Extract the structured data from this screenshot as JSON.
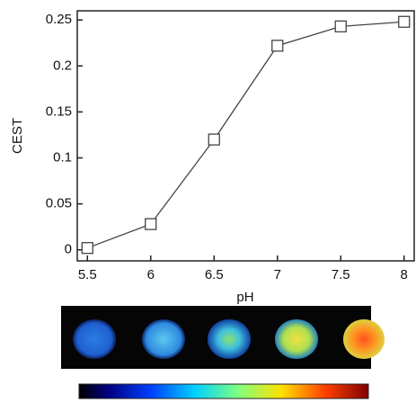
{
  "chart_data": {
    "type": "line",
    "x_label": "pH",
    "y_label": "CEST",
    "x": [
      5.5,
      6,
      6.5,
      7,
      7.5,
      8
    ],
    "series": [
      {
        "color": "#444444",
        "values": [
          0.002,
          0.028,
          0.12,
          0.222,
          0.243,
          0.248
        ]
      }
    ],
    "xlim": [
      5.42,
      8.08
    ],
    "ylim": [
      -0.012,
      0.26
    ],
    "xticks": [
      5.5,
      6,
      6.5,
      7,
      7.5,
      8
    ],
    "yticks": [
      0,
      0.05,
      0.1,
      0.15,
      0.2,
      0.25
    ]
  }
}
